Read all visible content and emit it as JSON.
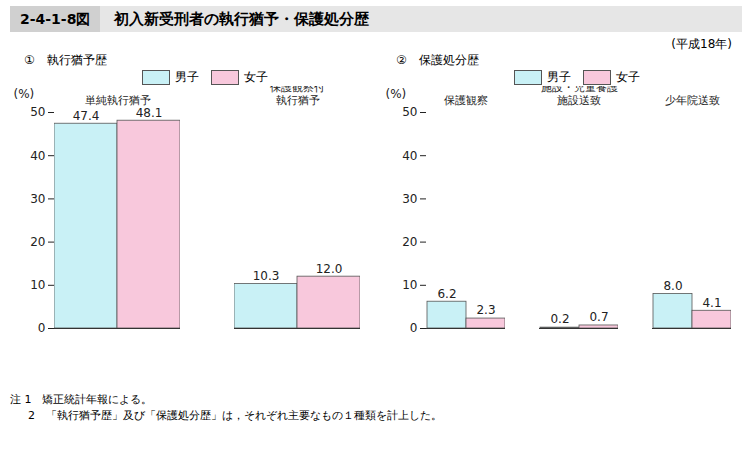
{
  "header": {
    "number": "2-4-1-8図",
    "title": "初入新受刑者の執行猶予・保護処分歴",
    "subtitle": "(平成18年)"
  },
  "notes": [
    "注 1　矯正統計年報による。",
    "2　「執行猶予歴」及び「保護処分歴」は，それぞれ主要なもの１種類を計上した。"
  ],
  "chart_data": [
    {
      "type": "bar",
      "title": "①　執行猶予歴",
      "y_label": "(%)",
      "categories": [
        "単純執行猶予",
        "保護観察付\n執行猶予"
      ],
      "series": [
        {
          "name": "男子",
          "color": "#c9f1f6",
          "values": [
            47.4,
            10.3
          ],
          "value_labels": [
            "47.4",
            "10.3"
          ]
        },
        {
          "name": "女子",
          "color": "#f8c8dc",
          "values": [
            48.1,
            12.0
          ],
          "value_labels": [
            "48.1",
            "12.0"
          ]
        }
      ],
      "ylim": [
        0,
        50
      ],
      "yticks": [
        0,
        10,
        20,
        30,
        40,
        50
      ],
      "legend": "top",
      "data_labels": true,
      "grid": false
    },
    {
      "type": "bar",
      "title": "②　保護処分歴",
      "y_label": "(%)",
      "categories": [
        "保護観察",
        "児童自立支援\n施設・児童養護\n施設送致",
        "少年院送致"
      ],
      "series": [
        {
          "name": "男子",
          "color": "#c9f1f6",
          "values": [
            6.2,
            0.2,
            8.0
          ],
          "value_labels": [
            "6.2",
            "0.2",
            "8.0"
          ]
        },
        {
          "name": "女子",
          "color": "#f8c8dc",
          "values": [
            2.3,
            0.7,
            4.1
          ],
          "value_labels": [
            "2.3",
            "0.7",
            "4.1"
          ]
        }
      ],
      "ylim": [
        0,
        50
      ],
      "yticks": [
        0,
        10,
        20,
        30,
        40,
        50
      ],
      "legend": "top",
      "data_labels": true,
      "grid": false
    }
  ]
}
